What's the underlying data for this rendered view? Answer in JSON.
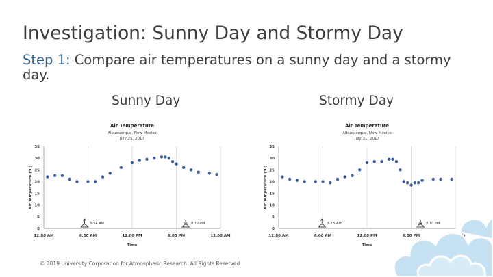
{
  "slide": {
    "title": "Investigation: Sunny Day and Stormy Day",
    "step_label": "Step 1:",
    "step_text": " Compare air temperatures on a sunny day and a stormy day."
  },
  "panels": [
    {
      "label": "Sunny Day"
    },
    {
      "label": "Stormy Day"
    }
  ],
  "footer": "© 2019 University Corporation for Atmospheric Research. All Rights Reserved",
  "colors": {
    "marker": "#3c5f9c",
    "accent": "#2f6290",
    "decor": "#c6e1f2"
  },
  "chart_data": [
    {
      "type": "scatter",
      "title": "Air Temperature",
      "subtitle": [
        "Albuquerque, New Mexico",
        "July 25, 2017"
      ],
      "xlabel": "Time",
      "ylabel": "Air Temperature (°C)",
      "ylim": [
        0,
        35
      ],
      "y_ticks": [
        0,
        5,
        10,
        15,
        20,
        25,
        30,
        35
      ],
      "xlim": [
        0,
        24
      ],
      "x_ticks": [
        0,
        6,
        12,
        18,
        24
      ],
      "x_tick_labels": [
        "12:00 AM",
        "6:00 AM",
        "12:00 PM",
        "6:00 PM",
        "12:00 AM"
      ],
      "grid": "vertical",
      "points": [
        {
          "x": 0.5,
          "y": 22.0
        },
        {
          "x": 1.5,
          "y": 22.5
        },
        {
          "x": 2.5,
          "y": 22.5
        },
        {
          "x": 3.5,
          "y": 21.0
        },
        {
          "x": 4.5,
          "y": 20.0
        },
        {
          "x": 6.0,
          "y": 20.0
        },
        {
          "x": 7.0,
          "y": 20.0
        },
        {
          "x": 8.0,
          "y": 22.0
        },
        {
          "x": 9.0,
          "y": 23.5
        },
        {
          "x": 10.5,
          "y": 26.0
        },
        {
          "x": 12.0,
          "y": 28.0
        },
        {
          "x": 13.0,
          "y": 29.0
        },
        {
          "x": 14.0,
          "y": 29.5
        },
        {
          "x": 15.0,
          "y": 30.0
        },
        {
          "x": 16.0,
          "y": 30.5
        },
        {
          "x": 16.5,
          "y": 30.5
        },
        {
          "x": 17.0,
          "y": 30.0
        },
        {
          "x": 17.5,
          "y": 28.5
        },
        {
          "x": 18.0,
          "y": 27.5
        },
        {
          "x": 19.0,
          "y": 26.0
        },
        {
          "x": 20.0,
          "y": 25.0
        },
        {
          "x": 21.0,
          "y": 24.0
        },
        {
          "x": 22.5,
          "y": 23.5
        },
        {
          "x": 23.5,
          "y": 23.0
        }
      ],
      "annotations": [
        {
          "label": "5:54 AM",
          "icon": "sunrise-icon",
          "x": 5.9
        },
        {
          "label": "8:12 PM",
          "icon": "sunset-icon",
          "x": 20.2
        }
      ]
    },
    {
      "type": "scatter",
      "title": "Air Temperature",
      "subtitle": [
        "Albuquerque, New Mexico",
        "July 31, 2017"
      ],
      "xlabel": "Time",
      "ylabel": "Air Temperature (°C)",
      "ylim": [
        0,
        35
      ],
      "y_ticks": [
        0,
        5,
        10,
        15,
        20,
        25,
        30,
        35
      ],
      "xlim": [
        0,
        24
      ],
      "x_ticks": [
        0,
        6,
        12,
        18,
        24
      ],
      "x_tick_labels": [
        "12:00 AM",
        "6:00 AM",
        "12:00 PM",
        "6:00 PM",
        "12:00 AM"
      ],
      "grid": "vertical",
      "points": [
        {
          "x": 0.5,
          "y": 22.0
        },
        {
          "x": 1.5,
          "y": 21.0
        },
        {
          "x": 2.5,
          "y": 20.5
        },
        {
          "x": 3.5,
          "y": 20.0
        },
        {
          "x": 5.0,
          "y": 20.0
        },
        {
          "x": 6.0,
          "y": 20.0
        },
        {
          "x": 7.0,
          "y": 19.5
        },
        {
          "x": 8.0,
          "y": 21.0
        },
        {
          "x": 9.0,
          "y": 22.0
        },
        {
          "x": 10.0,
          "y": 22.5
        },
        {
          "x": 11.0,
          "y": 25.0
        },
        {
          "x": 12.0,
          "y": 28.0
        },
        {
          "x": 13.0,
          "y": 28.5
        },
        {
          "x": 14.0,
          "y": 28.5
        },
        {
          "x": 15.0,
          "y": 29.5
        },
        {
          "x": 15.5,
          "y": 29.5
        },
        {
          "x": 16.0,
          "y": 28.5
        },
        {
          "x": 16.5,
          "y": 25.0
        },
        {
          "x": 17.0,
          "y": 20.0
        },
        {
          "x": 17.5,
          "y": 19.5
        },
        {
          "x": 18.0,
          "y": 18.5
        },
        {
          "x": 18.5,
          "y": 19.5
        },
        {
          "x": 19.0,
          "y": 19.5
        },
        {
          "x": 19.5,
          "y": 20.5
        },
        {
          "x": 21.0,
          "y": 21.0
        },
        {
          "x": 22.0,
          "y": 21.0
        },
        {
          "x": 23.5,
          "y": 21.0
        }
      ],
      "annotations": [
        {
          "label": "6:15 AM",
          "icon": "sunrise-icon",
          "x": 6.25
        },
        {
          "label": "8:10 PM",
          "icon": "sunset-icon",
          "x": 20.2
        }
      ]
    }
  ]
}
